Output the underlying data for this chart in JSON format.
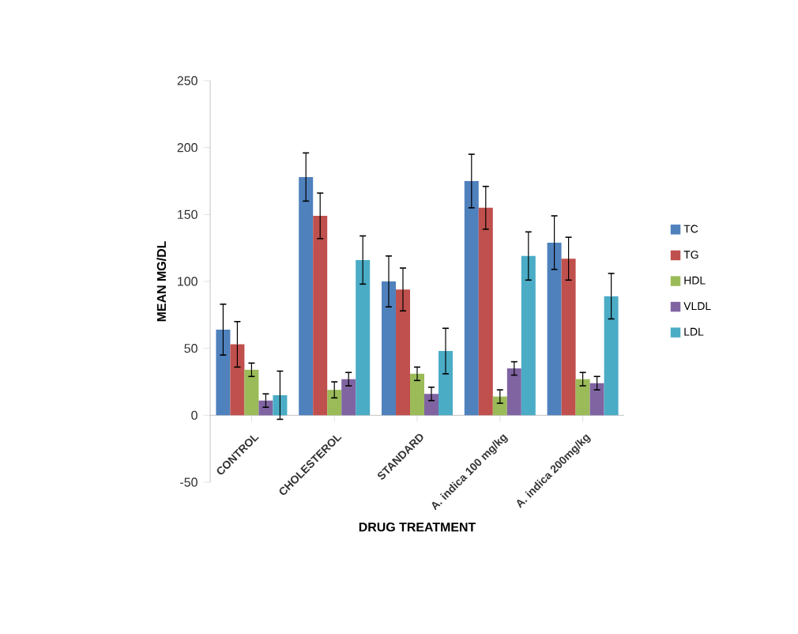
{
  "chart_data": {
    "type": "bar",
    "xlabel": "DRUG TREATMENT",
    "ylabel": "MEAN MG/DL",
    "categories": [
      "CONTROL",
      "CHOLESTEROL",
      "STANDARD",
      "A. indica 100 mg/kg",
      "A. indica 200mg/kg"
    ],
    "series": [
      {
        "name": "TC",
        "color": "#4f81bd",
        "values": [
          64,
          178,
          100,
          175,
          129
        ],
        "errors": [
          19,
          18,
          19,
          20,
          20
        ]
      },
      {
        "name": "TG",
        "color": "#c0504d",
        "values": [
          53,
          149,
          94,
          155,
          117
        ],
        "errors": [
          17,
          17,
          16,
          16,
          16
        ]
      },
      {
        "name": "HDL",
        "color": "#9bbb59",
        "values": [
          34,
          19,
          31,
          14,
          27
        ],
        "errors": [
          5,
          6,
          5,
          5,
          5
        ]
      },
      {
        "name": "VLDL",
        "color": "#8064a2",
        "values": [
          11,
          27,
          16,
          35,
          24
        ],
        "errors": [
          5,
          5,
          5,
          5,
          5
        ]
      },
      {
        "name": "LDL",
        "color": "#4bacc6",
        "values": [
          15,
          116,
          48,
          119,
          89
        ],
        "errors": [
          18,
          18,
          17,
          18,
          17
        ]
      }
    ],
    "ylim": [
      -50,
      250
    ],
    "yticks": [
      -50,
      0,
      50,
      100,
      150,
      200,
      250
    ],
    "legend": "right"
  }
}
